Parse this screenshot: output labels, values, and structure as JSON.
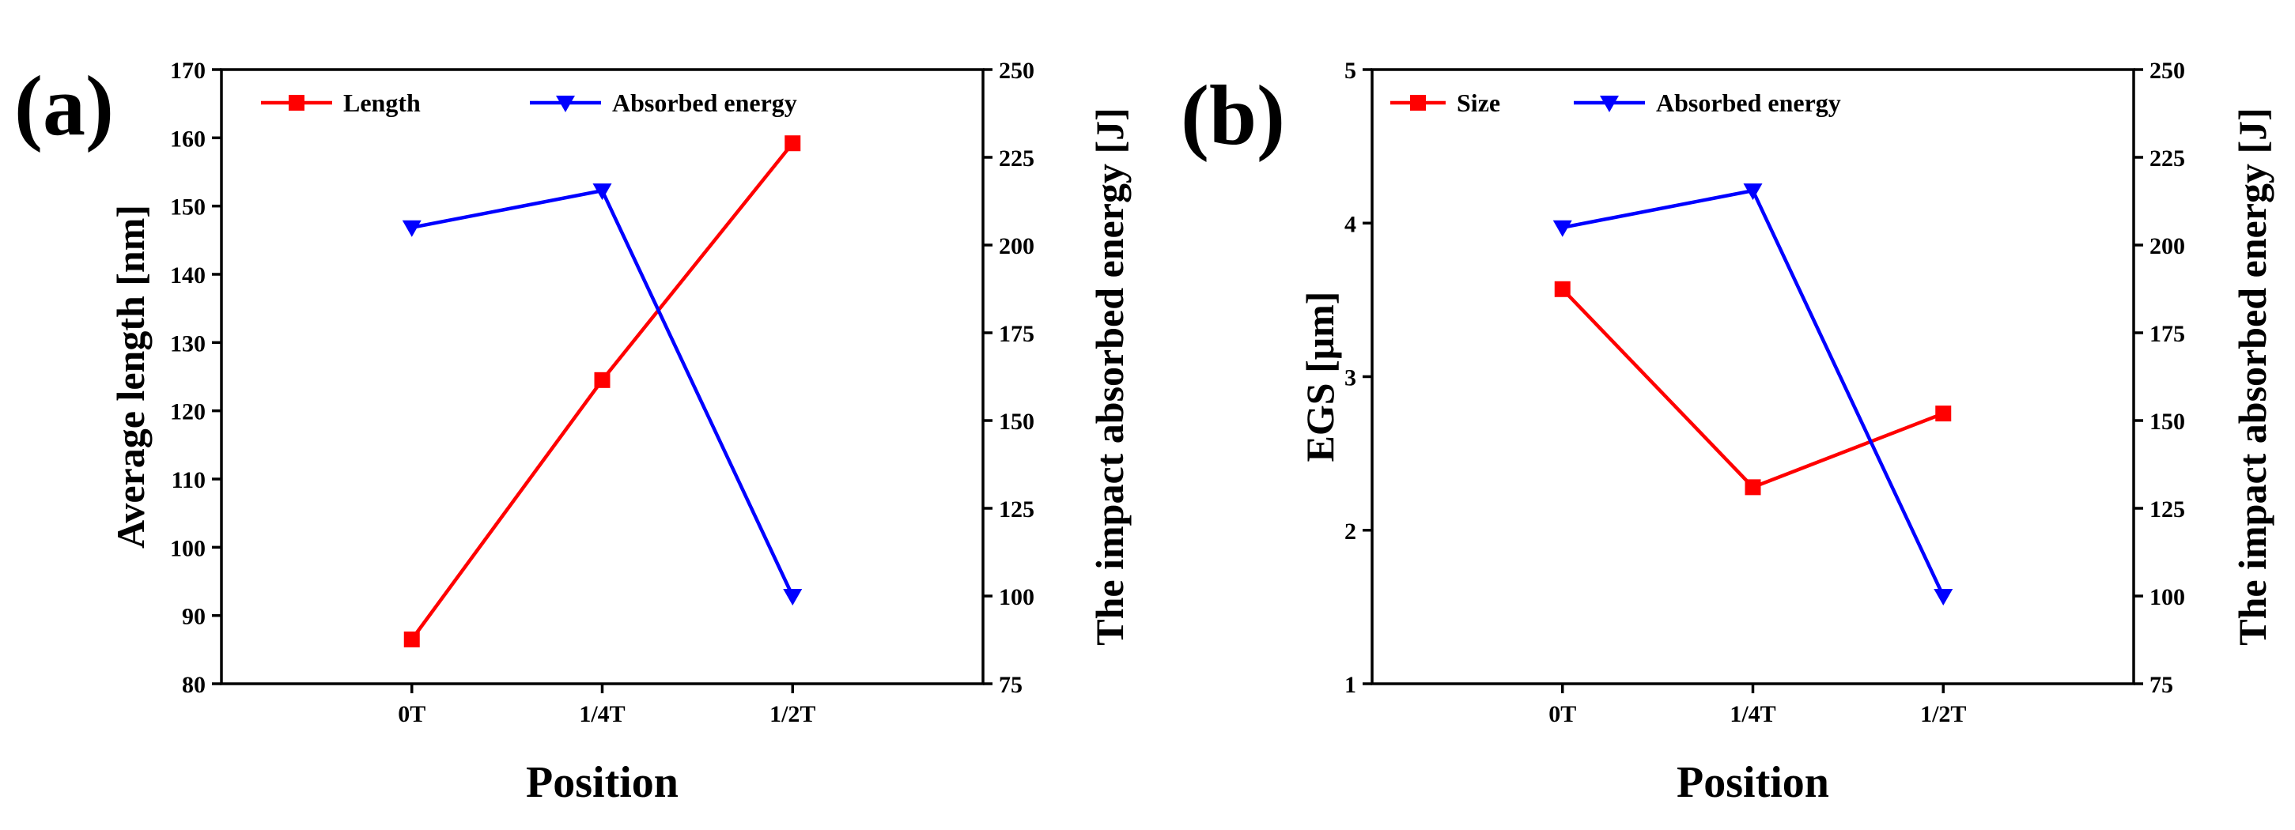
{
  "chart_data": [
    {
      "type": "line",
      "panel_label": "(a)",
      "xlabel": "Position",
      "ylabel_left": "Average length [nm]",
      "ylabel_right": "The impact absorbed energy [J]",
      "categories": [
        "0T",
        "1/4T",
        "1/2T"
      ],
      "y_left_range": [
        80,
        170
      ],
      "y_left_ticks": [
        80,
        90,
        100,
        110,
        120,
        130,
        140,
        150,
        160,
        170
      ],
      "y_right_range": [
        75,
        250
      ],
      "y_right_ticks": [
        75,
        100,
        125,
        150,
        175,
        200,
        225,
        250
      ],
      "grid": false,
      "legend_placement": "top-left",
      "series": [
        {
          "name": "Length",
          "axis": "left",
          "marker": "square",
          "color": "#ff0000",
          "values": [
            86.5,
            124.5,
            159.2
          ]
        },
        {
          "name": "Absorbed energy",
          "axis": "right",
          "marker": "triangle-down",
          "color": "#0000ff",
          "values": [
            205,
            215.5,
            100
          ]
        }
      ]
    },
    {
      "type": "line",
      "panel_label": "(b)",
      "xlabel": "Position",
      "ylabel_left": "EGS [μm]",
      "ylabel_right": "The impact absorbed energy [J]",
      "categories": [
        "0T",
        "1/4T",
        "1/2T"
      ],
      "y_left_range": [
        1,
        5
      ],
      "y_left_ticks": [
        1,
        2,
        3,
        4,
        5
      ],
      "y_right_range": [
        75,
        250
      ],
      "y_right_ticks": [
        75,
        100,
        125,
        150,
        175,
        200,
        225,
        250
      ],
      "grid": false,
      "legend_placement": "top-left",
      "series": [
        {
          "name": "Size",
          "axis": "left",
          "marker": "square",
          "color": "#ff0000",
          "values": [
            3.57,
            2.28,
            2.76
          ]
        },
        {
          "name": "Absorbed energy",
          "axis": "right",
          "marker": "triangle-down",
          "color": "#0000ff",
          "values": [
            205,
            215.5,
            100
          ]
        }
      ]
    }
  ]
}
